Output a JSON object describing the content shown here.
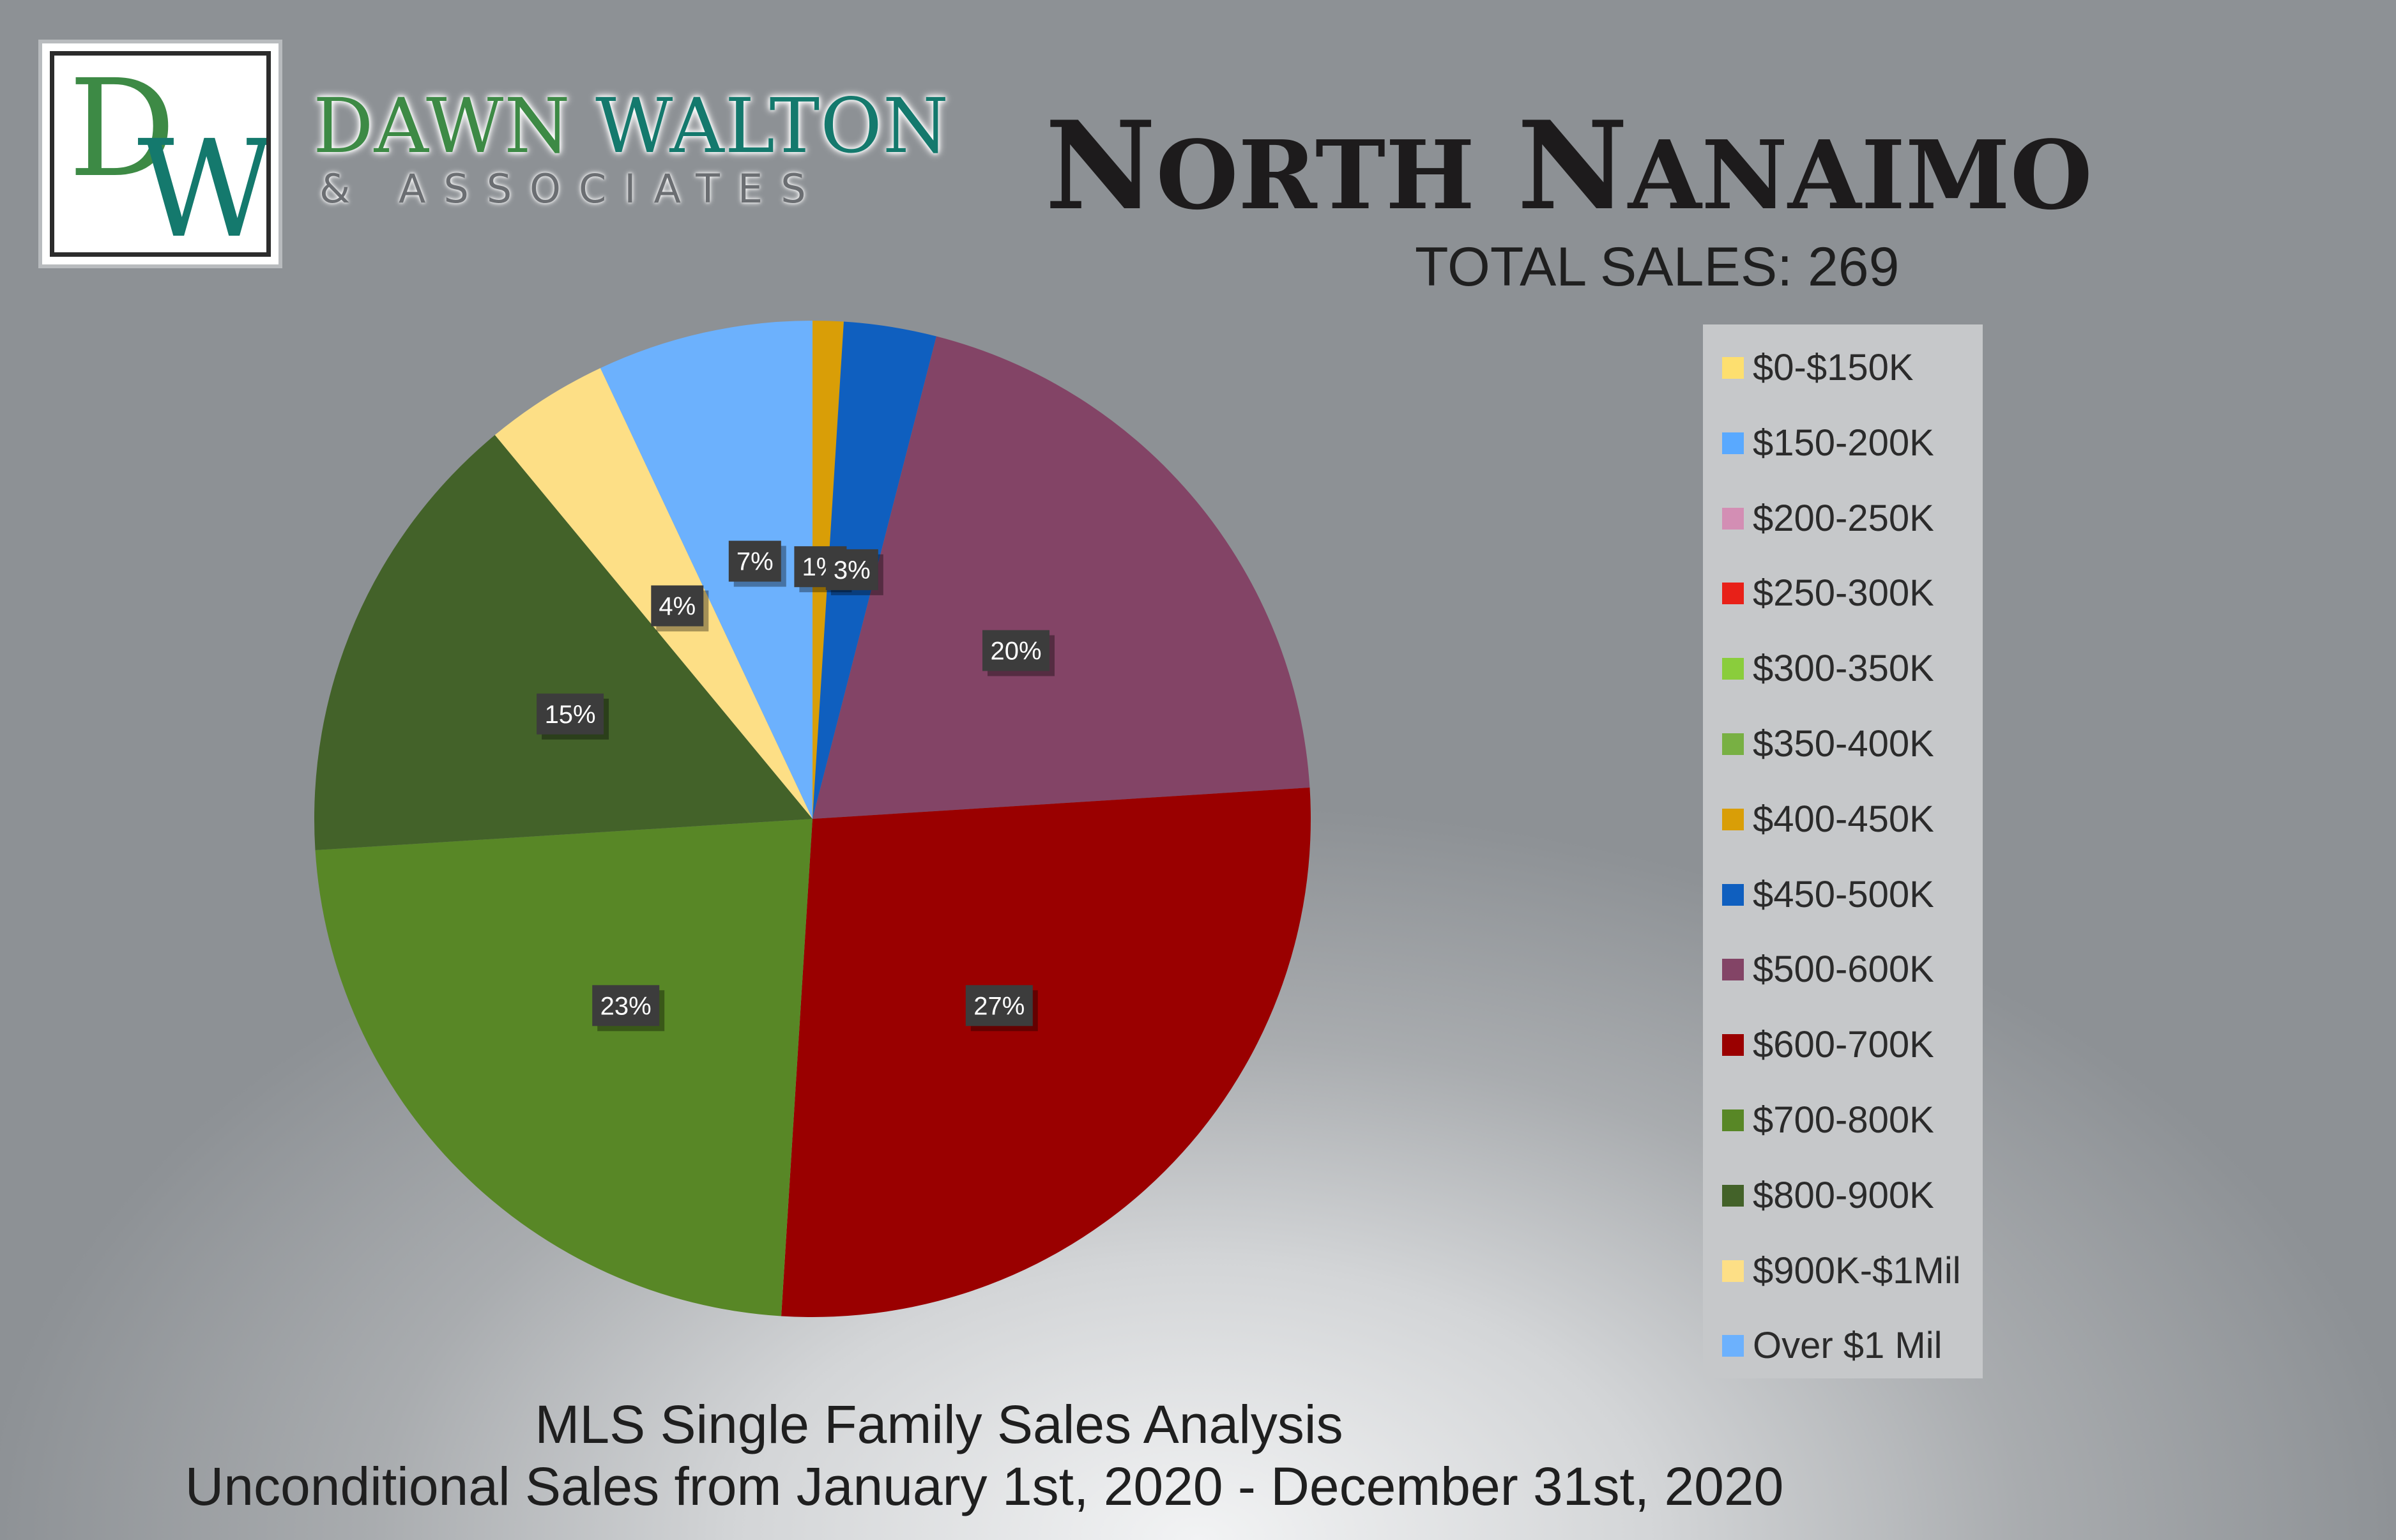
{
  "brand": {
    "monogram_d": "D",
    "monogram_w": "W",
    "name_first": "DAWN",
    "name_last": "WALTON",
    "subtitle": "& ASSOCIATES",
    "colors": {
      "green": "#3d8a45",
      "teal": "#14796d"
    }
  },
  "header": {
    "title": "North Nanaimo",
    "total_sales": "TOTAL SALES: 269"
  },
  "footer": {
    "line1": "MLS Single Family Sales Analysis",
    "line2": "Unconditional Sales from January 1st, 2020 - December 31st, 2020"
  },
  "chart_data": {
    "type": "pie",
    "title": "North Nanaimo",
    "subtitle": "TOTAL SALES: 269",
    "legend_position": "right",
    "categories": [
      "$0-$150K",
      "$150-200K",
      "$200-250K",
      "$250-300K",
      "$300-350K",
      "$350-400K",
      "$400-450K",
      "$450-500K",
      "$500-600K",
      "$600-700K",
      "$700-800K",
      "$800-900K",
      "$900K-$1Mil",
      "Over $1 Mil"
    ],
    "values": [
      0,
      0,
      0,
      0,
      0,
      0,
      1,
      3,
      20,
      27,
      23,
      15,
      4,
      7
    ],
    "data_labels": [
      "",
      "",
      "",
      "",
      "",
      "",
      "1%",
      "3%",
      "20%",
      "27%",
      "23%",
      "15%",
      "4%",
      "7%"
    ],
    "colors": [
      "#fddf6f",
      "#59a9ff",
      "#d38eb4",
      "#e82018",
      "#8acd3c",
      "#78b043",
      "#d99e07",
      "#0f5fbf",
      "#834466",
      "#9a0000",
      "#588726",
      "#436229",
      "#fddf86",
      "#6cb1fd"
    ]
  }
}
